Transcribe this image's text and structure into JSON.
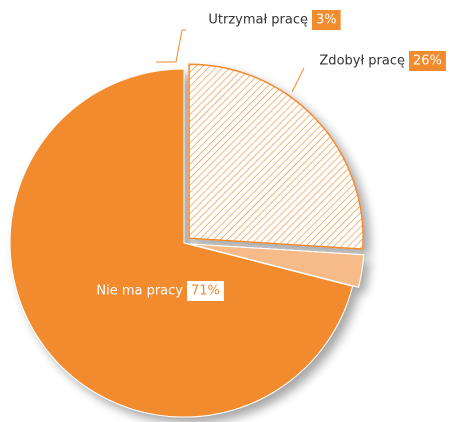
{
  "chart_data": {
    "type": "pie",
    "categories": [
      "Zdobył pracę",
      "Utrzymał pracę",
      "Nie ma pracy"
    ],
    "values": [
      26,
      3,
      71
    ],
    "value_labels": [
      "26%",
      "3%",
      "71%"
    ],
    "colors": [
      "#f28a2e",
      "#f7bb8a",
      "#f28a2e"
    ]
  }
}
